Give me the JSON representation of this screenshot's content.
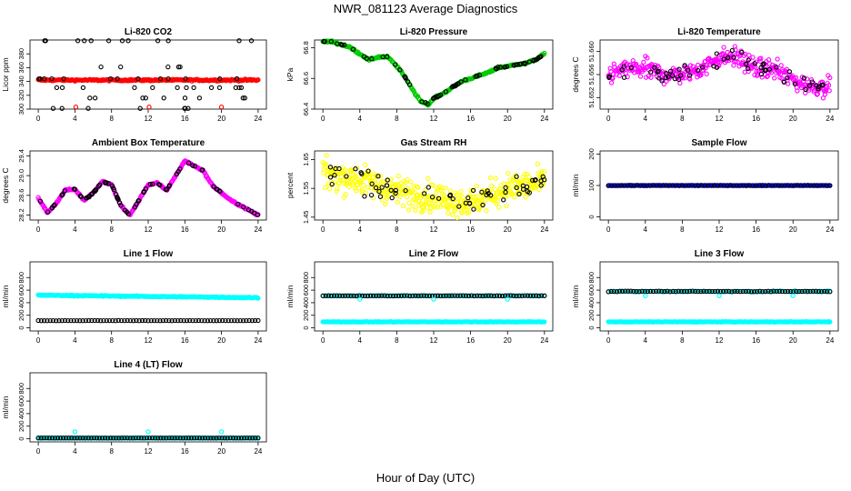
{
  "title": "NWR_081123  Average Diagnostics",
  "x_axis_title": "Hour of Day (UTC)",
  "colors": {
    "red": "#ff0000",
    "green": "#00cc00",
    "magenta": "#ff00ff",
    "yellow": "#ffff00",
    "blue": "#0000ff",
    "cyan": "#00ffff",
    "black": "#000000"
  },
  "chart_data": [
    {
      "type": "scatter",
      "title": "Li-820 CO2",
      "ylabel": "Licor ppm",
      "xlim": [
        0,
        24
      ],
      "ylim": [
        300,
        400
      ],
      "yticks": [
        "300",
        "320",
        "340",
        "360",
        "380"
      ],
      "xticks": [
        "0",
        "4",
        "8",
        "12",
        "16",
        "20",
        "24"
      ],
      "series": [
        {
          "color": "#ff0000",
          "pattern": "flat",
          "mean": 342,
          "noise": 1.2,
          "n": 240,
          "x_range": [
            0,
            24
          ],
          "note": "dense red band"
        },
        {
          "color": "#000000",
          "pattern": "levels",
          "levels": [
            301,
            316,
            331,
            344,
            361,
            400
          ],
          "x_range": [
            0,
            24
          ],
          "n": 60
        },
        {
          "color": "#ff0000",
          "pattern": "points",
          "x": [
            4.1,
            12.1,
            20.0
          ],
          "y": [
            303,
            303,
            303
          ]
        }
      ]
    },
    {
      "type": "scatter",
      "title": "Li-820 Pressure",
      "ylabel": "kPa",
      "xlim": [
        0,
        24
      ],
      "ylim": [
        66.4,
        66.85
      ],
      "yticks": [
        "66.4",
        "66.6",
        "66.8"
      ],
      "xticks": [
        "0",
        "4",
        "8",
        "12",
        "16",
        "20",
        "24"
      ],
      "series": [
        {
          "color": "#00cc00",
          "pattern": "curve",
          "x": [
            0,
            1,
            2,
            3,
            4,
            5,
            6,
            7,
            8,
            9,
            10,
            10.5,
            11,
            11.5,
            12,
            13,
            14,
            15,
            16,
            17,
            18,
            19,
            20,
            21,
            22,
            23,
            24
          ],
          "y": [
            66.84,
            66.84,
            66.82,
            66.8,
            66.76,
            66.72,
            66.74,
            66.74,
            66.68,
            66.6,
            66.5,
            66.46,
            66.44,
            66.43,
            66.47,
            66.5,
            66.54,
            66.58,
            66.6,
            66.62,
            66.64,
            66.67,
            66.68,
            66.69,
            66.7,
            66.72,
            66.76
          ],
          "noise": 0.006,
          "n": 260
        },
        {
          "color": "#000000",
          "pattern": "curve_sample",
          "n": 70
        }
      ]
    },
    {
      "type": "scatter",
      "title": "Li-820 Temperature",
      "ylabel": "degrees C",
      "xlim": [
        0,
        24
      ],
      "ylim": [
        51.65,
        51.662
      ],
      "yticks": [
        "51.652",
        "51.656",
        "51.660"
      ],
      "xticks": [
        "0",
        "4",
        "8",
        "12",
        "16",
        "20",
        "24"
      ],
      "series": [
        {
          "color": "#ff00ff",
          "pattern": "curve",
          "x": [
            0,
            2,
            4,
            6,
            8,
            10,
            12,
            14,
            16,
            18,
            20,
            22,
            24
          ],
          "y": [
            51.656,
            51.657,
            51.657,
            51.656,
            51.656,
            51.657,
            51.659,
            51.659,
            51.657,
            51.657,
            51.655,
            51.654,
            51.654
          ],
          "noise": 0.0016,
          "n": 360
        },
        {
          "color": "#000000",
          "pattern": "curve_sample",
          "n": 60
        }
      ]
    },
    {
      "type": "scatter",
      "title": "Ambient Box Temperature",
      "ylabel": "degrees C",
      "xlim": [
        0,
        24
      ],
      "ylim": [
        28.1,
        29.5
      ],
      "yticks": [
        "28.2",
        "28.6",
        "29.0",
        "29.4"
      ],
      "xticks": [
        "0",
        "4",
        "8",
        "12",
        "16",
        "20",
        "24"
      ],
      "series": [
        {
          "color": "#ff00ff",
          "pattern": "curve",
          "x": [
            0,
            1,
            2,
            3,
            4,
            5,
            6,
            7,
            8,
            9,
            10,
            11,
            12,
            13,
            14,
            15,
            16,
            17,
            18,
            19,
            20,
            21,
            22,
            23,
            24
          ],
          "y": [
            28.55,
            28.25,
            28.45,
            28.72,
            28.72,
            28.5,
            28.65,
            28.88,
            28.82,
            28.4,
            28.2,
            28.5,
            28.82,
            28.85,
            28.7,
            29.0,
            29.3,
            29.2,
            29.1,
            28.8,
            28.65,
            28.5,
            28.4,
            28.3,
            28.2
          ],
          "noise": 0.015,
          "n": 300
        },
        {
          "color": "#000000",
          "pattern": "curve_sample",
          "n": 80
        }
      ]
    },
    {
      "type": "scatter",
      "title": "Gas Stream RH",
      "ylabel": "percent",
      "xlim": [
        0,
        24
      ],
      "ylim": [
        1.44,
        1.68
      ],
      "yticks": [
        "1.45",
        "1.55",
        "1.65"
      ],
      "xticks": [
        "0",
        "4",
        "8",
        "12",
        "16",
        "20",
        "24"
      ],
      "series": [
        {
          "color": "#ffff00",
          "pattern": "curve",
          "x": [
            0,
            4,
            8,
            12,
            16,
            20,
            24
          ],
          "y": [
            1.6,
            1.58,
            1.54,
            1.52,
            1.5,
            1.55,
            1.57
          ],
          "noise": 0.05,
          "n": 420
        },
        {
          "color": "#000000",
          "pattern": "curve_sample",
          "n": 65
        }
      ]
    },
    {
      "type": "scatter",
      "title": "Sample Flow",
      "ylabel": "ml/min",
      "xlim": [
        0,
        24
      ],
      "ylim": [
        -10,
        210
      ],
      "yticks": [
        "0",
        "100",
        "200"
      ],
      "xticks": [
        "0",
        "4",
        "8",
        "12",
        "16",
        "20",
        "24"
      ],
      "series": [
        {
          "color": "#0000ff",
          "pattern": "flat",
          "mean": 100,
          "noise": 0.5,
          "n": 220
        },
        {
          "color": "#000000",
          "pattern": "flat",
          "mean": 100,
          "noise": 0.5,
          "n": 70
        }
      ]
    },
    {
      "type": "scatter",
      "title": "Line 1 Flow",
      "ylabel": "ml/min",
      "xlim": [
        0,
        24
      ],
      "ylim": [
        -50,
        1050
      ],
      "yticks": [
        "0",
        "200",
        "400",
        "600",
        "800"
      ],
      "xticks": [
        "0",
        "4",
        "8",
        "12",
        "16",
        "20",
        "24"
      ],
      "series": [
        {
          "color": "#00ffff",
          "pattern": "curve",
          "x": [
            0,
            24
          ],
          "y": [
            520,
            480
          ],
          "noise": 8,
          "n": 300
        },
        {
          "color": "#000000",
          "pattern": "flat",
          "mean": 115,
          "noise": 2,
          "n": 75
        }
      ]
    },
    {
      "type": "scatter",
      "title": "Line 2 Flow",
      "ylabel": "ml/min",
      "xlim": [
        0,
        24
      ],
      "ylim": [
        -50,
        1050
      ],
      "yticks": [
        "0",
        "200",
        "400",
        "600",
        "800"
      ],
      "xticks": [
        "0",
        "4",
        "8",
        "12",
        "16",
        "20",
        "24"
      ],
      "series": [
        {
          "color": "#00ffff",
          "pattern": "flat",
          "mean": 95,
          "noise": 3,
          "n": 300
        },
        {
          "color": "#00ffff",
          "pattern": "flat",
          "mean": 510,
          "noise": 4,
          "n": 90
        },
        {
          "color": "#000000",
          "pattern": "flat",
          "mean": 510,
          "noise": 3,
          "n": 80
        },
        {
          "color": "#00ffff",
          "pattern": "points",
          "x": [
            4,
            12,
            20
          ],
          "y": [
            455,
            455,
            455
          ]
        }
      ]
    },
    {
      "type": "scatter",
      "title": "Line 3 Flow",
      "ylabel": "ml/min",
      "xlim": [
        0,
        24
      ],
      "ylim": [
        -50,
        1050
      ],
      "yticks": [
        "0",
        "200",
        "400",
        "600",
        "800"
      ],
      "xticks": [
        "0",
        "4",
        "8",
        "12",
        "16",
        "20",
        "24"
      ],
      "series": [
        {
          "color": "#00ffff",
          "pattern": "flat",
          "mean": 95,
          "noise": 3,
          "n": 300
        },
        {
          "color": "#00ffff",
          "pattern": "flat",
          "mean": 580,
          "noise": 10,
          "n": 90
        },
        {
          "color": "#000000",
          "pattern": "flat",
          "mean": 580,
          "noise": 4,
          "n": 80
        },
        {
          "color": "#00ffff",
          "pattern": "points",
          "x": [
            4,
            12,
            20
          ],
          "y": [
            510,
            510,
            510
          ]
        }
      ]
    },
    {
      "type": "scatter",
      "title": "Line 4 (LT) Flow",
      "ylabel": "ml/min",
      "xlim": [
        0,
        24
      ],
      "ylim": [
        -50,
        1050
      ],
      "yticks": [
        "0",
        "200",
        "400",
        "600",
        "800"
      ],
      "xticks": [
        "0",
        "4",
        "8",
        "12",
        "16",
        "20",
        "24"
      ],
      "series": [
        {
          "color": "#00ffff",
          "pattern": "flat",
          "mean": 10,
          "noise": 2,
          "n": 260
        },
        {
          "color": "#000000",
          "pattern": "flat",
          "mean": 12,
          "noise": 2,
          "n": 80
        },
        {
          "color": "#00ffff",
          "pattern": "points",
          "x": [
            4,
            12,
            20
          ],
          "y": [
            110,
            110,
            110
          ]
        }
      ]
    }
  ]
}
